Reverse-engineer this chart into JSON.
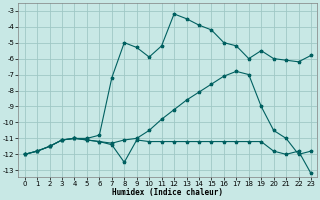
{
  "xlabel": "Humidex (Indice chaleur)",
  "xlim": [
    -0.5,
    23.5
  ],
  "ylim": [
    -13.4,
    -2.5
  ],
  "yticks": [
    -3,
    -4,
    -5,
    -6,
    -7,
    -8,
    -9,
    -10,
    -11,
    -12,
    -13
  ],
  "xticks": [
    0,
    1,
    2,
    3,
    4,
    5,
    6,
    7,
    8,
    9,
    10,
    11,
    12,
    13,
    14,
    15,
    16,
    17,
    18,
    19,
    20,
    21,
    22,
    23
  ],
  "bg_color": "#c8e8e5",
  "grid_color": "#a0c8c5",
  "line_color": "#006060",
  "line1_x": [
    0,
    1,
    2,
    3,
    4,
    5,
    6,
    7,
    8,
    9,
    10,
    11,
    12,
    13,
    14,
    15,
    16,
    17,
    18,
    19,
    20,
    21,
    22,
    23
  ],
  "line1_y": [
    -12.0,
    -11.8,
    -11.5,
    -11.1,
    -11.0,
    -11.0,
    -10.8,
    -7.2,
    -5.0,
    -5.3,
    -5.9,
    -5.2,
    -3.2,
    -3.5,
    -3.9,
    -4.2,
    -5.0,
    -5.2,
    -6.0,
    -5.5,
    -6.0,
    -6.1,
    -6.2,
    -5.8
  ],
  "line2_x": [
    0,
    1,
    2,
    3,
    4,
    5,
    6,
    7,
    8,
    9,
    10,
    11,
    12,
    13,
    14,
    15,
    16,
    17,
    18,
    19,
    20,
    21,
    22,
    23
  ],
  "line2_y": [
    -12.0,
    -11.8,
    -11.5,
    -11.1,
    -11.0,
    -11.1,
    -11.2,
    -11.4,
    -12.5,
    -11.1,
    -11.2,
    -11.2,
    -11.2,
    -11.2,
    -11.2,
    -11.2,
    -11.2,
    -11.2,
    -11.2,
    -11.2,
    -11.8,
    -12.0,
    -11.8,
    -13.2
  ],
  "line3_x": [
    0,
    1,
    2,
    3,
    4,
    5,
    6,
    7,
    8,
    9,
    10,
    11,
    12,
    13,
    14,
    15,
    16,
    17,
    18,
    19,
    20,
    21,
    22,
    23
  ],
  "line3_y": [
    -12.0,
    -11.8,
    -11.5,
    -11.1,
    -11.0,
    -11.1,
    -11.2,
    -11.3,
    -11.1,
    -11.0,
    -10.5,
    -9.8,
    -9.2,
    -8.6,
    -8.1,
    -7.6,
    -7.1,
    -6.8,
    -7.0,
    -9.0,
    -10.5,
    -11.0,
    -12.0,
    -11.8
  ]
}
